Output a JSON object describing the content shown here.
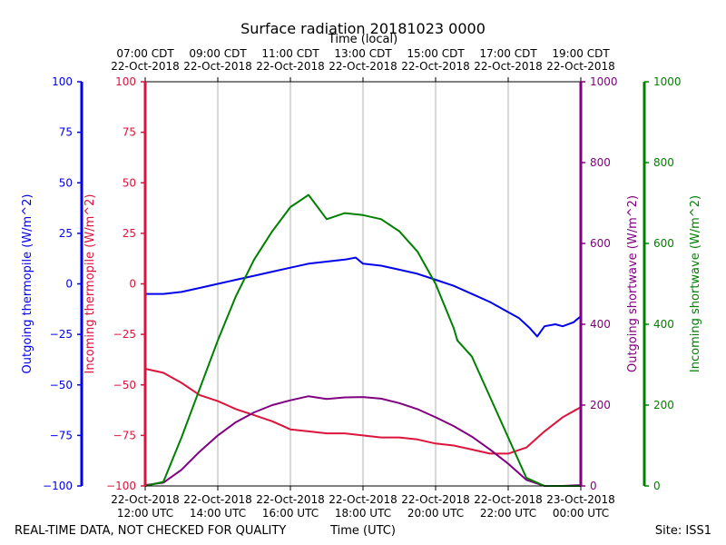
{
  "chart_data": {
    "type": "line",
    "title": "Surface radiation 20181023 0000",
    "top_axis_label": "Time (local)",
    "bottom_axis_label": "Time (UTC)",
    "x_range_hours_utc": [
      12,
      24
    ],
    "bottom_ticks": [
      {
        "hour": 12,
        "line1": "22-Oct-2018",
        "line2": "12:00 UTC"
      },
      {
        "hour": 14,
        "line1": "22-Oct-2018",
        "line2": "14:00 UTC"
      },
      {
        "hour": 16,
        "line1": "22-Oct-2018",
        "line2": "16:00 UTC"
      },
      {
        "hour": 18,
        "line1": "22-Oct-2018",
        "line2": "18:00 UTC"
      },
      {
        "hour": 20,
        "line1": "22-Oct-2018",
        "line2": "20:00 UTC"
      },
      {
        "hour": 22,
        "line1": "22-Oct-2018",
        "line2": "22:00 UTC"
      },
      {
        "hour": 24,
        "line1": "23-Oct-2018",
        "line2": "00:00 UTC"
      }
    ],
    "top_ticks": [
      {
        "hour": 12,
        "line1": "07:00 CDT",
        "line2": "22-Oct-2018"
      },
      {
        "hour": 14,
        "line1": "09:00 CDT",
        "line2": "22-Oct-2018"
      },
      {
        "hour": 16,
        "line1": "11:00 CDT",
        "line2": "22-Oct-2018"
      },
      {
        "hour": 18,
        "line1": "13:00 CDT",
        "line2": "22-Oct-2018"
      },
      {
        "hour": 20,
        "line1": "15:00 CDT",
        "line2": "22-Oct-2018"
      },
      {
        "hour": 22,
        "line1": "17:00 CDT",
        "line2": "22-Oct-2018"
      },
      {
        "hour": 24,
        "line1": "19:00 CDT",
        "line2": "22-Oct-2018"
      }
    ],
    "axes": [
      {
        "id": "outgoing_thermopile",
        "label": "Outgoing thermopile (W/m^2)",
        "color": "#0000ee",
        "range": [
          -100,
          100
        ],
        "ticks": [
          -100,
          -75,
          -50,
          -25,
          0,
          25,
          50,
          75,
          100
        ]
      },
      {
        "id": "incoming_thermopile",
        "label": "Incoming thermopile (W/m^2)",
        "color": "#dc143c",
        "range": [
          -100,
          100
        ],
        "ticks": [
          -100,
          -75,
          -50,
          -25,
          0,
          25,
          50,
          75,
          100
        ]
      },
      {
        "id": "outgoing_shortwave",
        "label": "Outgoing shortwave (W/m^2)",
        "color": "#800080",
        "range": [
          0,
          1000
        ],
        "ticks": [
          0,
          200,
          400,
          600,
          800,
          1000
        ]
      },
      {
        "id": "incoming_shortwave",
        "label": "Incoming shortwave (W/m^2)",
        "color": "#008000",
        "range": [
          0,
          1000
        ],
        "ticks": [
          0,
          200,
          400,
          600,
          800,
          1000
        ]
      }
    ],
    "series": [
      {
        "name": "Outgoing thermopile",
        "axis": "outgoing_thermopile",
        "color": "#0000ee",
        "x": [
          12.0,
          12.5,
          13.0,
          13.5,
          14.0,
          14.5,
          15.0,
          15.5,
          16.0,
          16.5,
          17.0,
          17.5,
          17.8,
          18.0,
          18.5,
          19.0,
          19.5,
          20.0,
          20.5,
          21.0,
          21.5,
          22.0,
          22.3,
          22.6,
          22.8,
          23.0,
          23.3,
          23.5,
          23.8,
          24.0
        ],
        "y": [
          -5,
          -5,
          -4,
          -2,
          0,
          2,
          4,
          6,
          8,
          10,
          11,
          12,
          13,
          10,
          9,
          7,
          5,
          2,
          -1,
          -5,
          -9,
          -14,
          -17,
          -22,
          -26,
          -21,
          -20,
          -21,
          -19,
          -16
        ]
      },
      {
        "name": "Incoming thermopile",
        "axis": "incoming_thermopile",
        "color": "#dc143c",
        "x": [
          12.0,
          12.5,
          13.0,
          13.5,
          14.0,
          14.5,
          15.0,
          15.5,
          16.0,
          16.5,
          17.0,
          17.5,
          18.0,
          18.5,
          19.0,
          19.5,
          20.0,
          20.5,
          21.0,
          21.5,
          22.0,
          22.5,
          23.0,
          23.5,
          24.0
        ],
        "y": [
          -42,
          -44,
          -49,
          -55,
          -58,
          -62,
          -65,
          -68,
          -72,
          -73,
          -74,
          -74,
          -75,
          -76,
          -76,
          -77,
          -79,
          -80,
          -82,
          -84,
          -84,
          -81,
          -73,
          -66,
          -61
        ]
      },
      {
        "name": "Outgoing shortwave",
        "axis": "outgoing_shortwave",
        "color": "#800080",
        "x": [
          12.0,
          12.5,
          13.0,
          13.5,
          14.0,
          14.5,
          15.0,
          15.5,
          16.0,
          16.5,
          17.0,
          17.5,
          18.0,
          18.5,
          19.0,
          19.5,
          20.0,
          20.5,
          21.0,
          21.5,
          22.0,
          22.5,
          23.0,
          23.5,
          24.0
        ],
        "y": [
          2,
          8,
          40,
          85,
          125,
          158,
          182,
          200,
          212,
          222,
          215,
          219,
          220,
          216,
          205,
          190,
          170,
          148,
          122,
          90,
          55,
          15,
          0,
          0,
          2
        ]
      },
      {
        "name": "Incoming shortwave",
        "axis": "incoming_shortwave",
        "color": "#008000",
        "x": [
          12.0,
          12.5,
          13.0,
          13.5,
          14.0,
          14.5,
          15.0,
          15.5,
          16.0,
          16.5,
          17.0,
          17.5,
          18.0,
          18.5,
          19.0,
          19.5,
          20.0,
          20.5,
          20.6,
          21.0,
          21.5,
          22.0,
          22.5,
          23.0,
          23.5,
          24.0
        ],
        "y": [
          0,
          10,
          120,
          240,
          360,
          470,
          560,
          630,
          690,
          720,
          660,
          675,
          670,
          660,
          630,
          580,
          500,
          390,
          360,
          320,
          220,
          120,
          20,
          0,
          0,
          0
        ]
      }
    ]
  },
  "footer": {
    "quality_note": "REAL-TIME DATA, NOT CHECKED FOR QUALITY",
    "site": "Site: ISS1"
  }
}
